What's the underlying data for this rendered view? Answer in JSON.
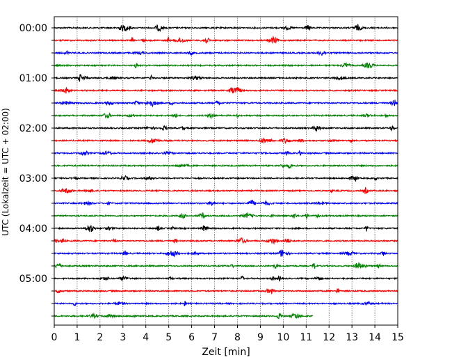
{
  "chart_data": {
    "type": "line",
    "title": "",
    "xlabel": "Zeit  [min]",
    "ylabel": "UTC (Lokalzeit = UTC + 02:00)",
    "xlim": [
      0,
      15
    ],
    "x_ticks": [
      0,
      1,
      2,
      3,
      4,
      5,
      6,
      7,
      8,
      9,
      10,
      11,
      12,
      13,
      14,
      15
    ],
    "y_tick_labels": [
      "00:00",
      "01:00",
      "02:00",
      "03:00",
      "04:00",
      "05:00"
    ],
    "grid": "vertical dotted",
    "trace_interval_minutes": 15,
    "traces_per_hour": 4,
    "trace_colors": [
      "#000000",
      "#ff0000",
      "#0000ff",
      "#008000"
    ],
    "traces": [
      {
        "start": "00:00",
        "end_minute": 15
      },
      {
        "start": "00:15",
        "end_minute": 15
      },
      {
        "start": "00:30",
        "end_minute": 15
      },
      {
        "start": "00:45",
        "end_minute": 15
      },
      {
        "start": "01:00",
        "end_minute": 15
      },
      {
        "start": "01:15",
        "end_minute": 15
      },
      {
        "start": "01:30",
        "end_minute": 15
      },
      {
        "start": "01:45",
        "end_minute": 15
      },
      {
        "start": "02:00",
        "end_minute": 15
      },
      {
        "start": "02:15",
        "end_minute": 15
      },
      {
        "start": "02:30",
        "end_minute": 15
      },
      {
        "start": "02:45",
        "end_minute": 15
      },
      {
        "start": "03:00",
        "end_minute": 15
      },
      {
        "start": "03:15",
        "end_minute": 15
      },
      {
        "start": "03:30",
        "end_minute": 15
      },
      {
        "start": "03:45",
        "end_minute": 15
      },
      {
        "start": "04:00",
        "end_minute": 15
      },
      {
        "start": "04:15",
        "end_minute": 15
      },
      {
        "start": "04:30",
        "end_minute": 15
      },
      {
        "start": "04:45",
        "end_minute": 15
      },
      {
        "start": "05:00",
        "end_minute": 15
      },
      {
        "start": "05:15",
        "end_minute": 15
      },
      {
        "start": "05:30",
        "end_minute": 15
      },
      {
        "start": "05:45",
        "end_minute": 11.3
      }
    ]
  }
}
